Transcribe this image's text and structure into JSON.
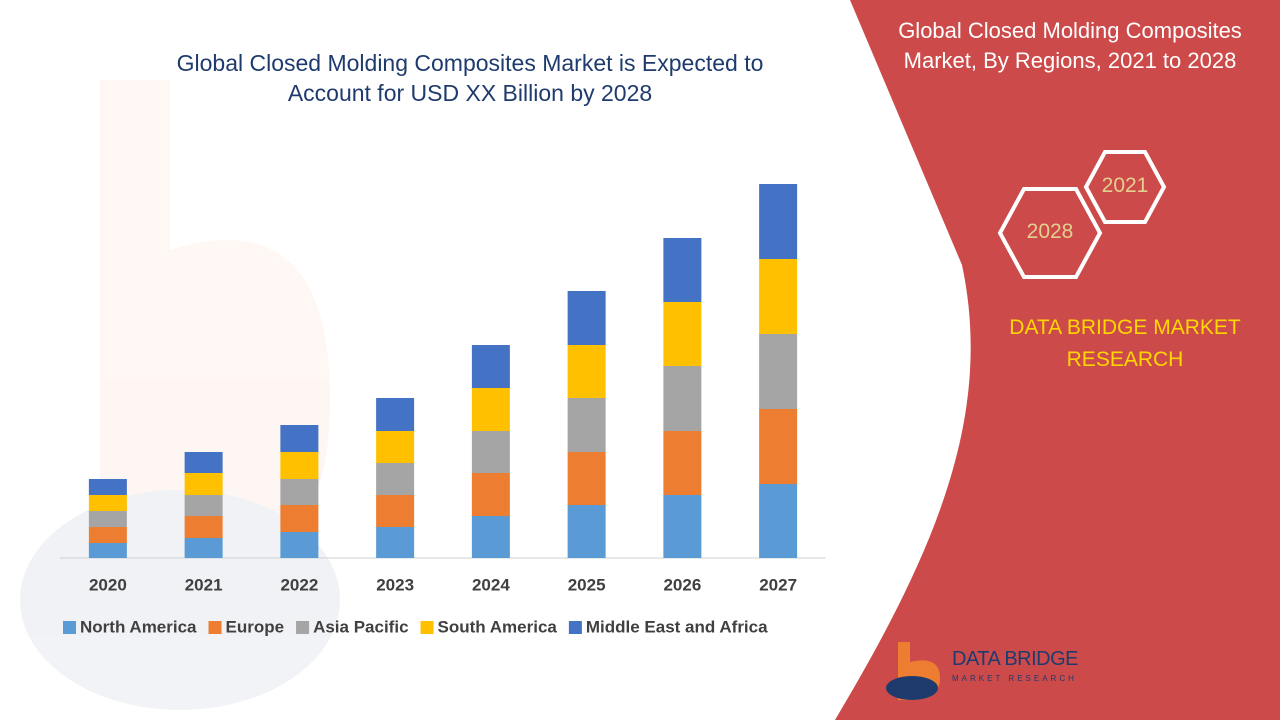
{
  "chart_data": {
    "type": "bar",
    "stacked": true,
    "title": "Global Closed Molding Composites Market is Expected to Account for USD XX Billion by 2028",
    "categories": [
      "2020",
      "2021",
      "2022",
      "2023",
      "2024",
      "2025",
      "2026",
      "2027"
    ],
    "series": [
      {
        "name": "North America",
        "color": "#5b9bd5",
        "values": [
          15,
          20,
          26,
          31,
          42,
          53,
          63,
          74
        ]
      },
      {
        "name": "Europe",
        "color": "#ed7d31",
        "values": [
          16,
          22,
          27,
          32,
          43,
          53,
          64,
          75
        ]
      },
      {
        "name": "Asia Pacific",
        "color": "#a5a5a5",
        "values": [
          16,
          21,
          26,
          32,
          42,
          54,
          65,
          75
        ]
      },
      {
        "name": "South America",
        "color": "#ffc000",
        "values": [
          16,
          22,
          27,
          32,
          43,
          53,
          64,
          75
        ]
      },
      {
        "name": "Middle East and Africa",
        "color": "#4472c4",
        "values": [
          16,
          21,
          27,
          33,
          43,
          54,
          64,
          75
        ]
      }
    ]
  },
  "panel": {
    "title": "Global Closed Molding Composites Market, By Regions, 2021 to 2028",
    "hex_labels": [
      "2021",
      "2028"
    ],
    "brand": "DATA BRIDGE MARKET RESEARCH"
  },
  "logo": {
    "name": "DATA BRIDGE",
    "tagline": "MARKET RESEARCH"
  }
}
